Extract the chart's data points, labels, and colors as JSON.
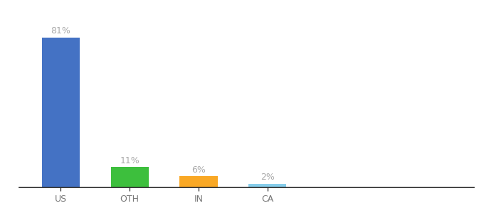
{
  "categories": [
    "US",
    "OTH",
    "IN",
    "CA"
  ],
  "values": [
    81,
    11,
    6,
    2
  ],
  "labels": [
    "81%",
    "11%",
    "6%",
    "2%"
  ],
  "bar_colors": [
    "#4472C4",
    "#3DBF3D",
    "#F9A825",
    "#87CEEB"
  ],
  "title": "",
  "ylim": [
    0,
    92
  ],
  "background_color": "#ffffff",
  "label_fontsize": 9,
  "tick_fontsize": 9,
  "label_color": "#aaaaaa",
  "tick_color": "#777777",
  "bar_width": 0.55,
  "x_positions": [
    0,
    1,
    2,
    3
  ],
  "xlim": [
    -0.6,
    6.0
  ]
}
